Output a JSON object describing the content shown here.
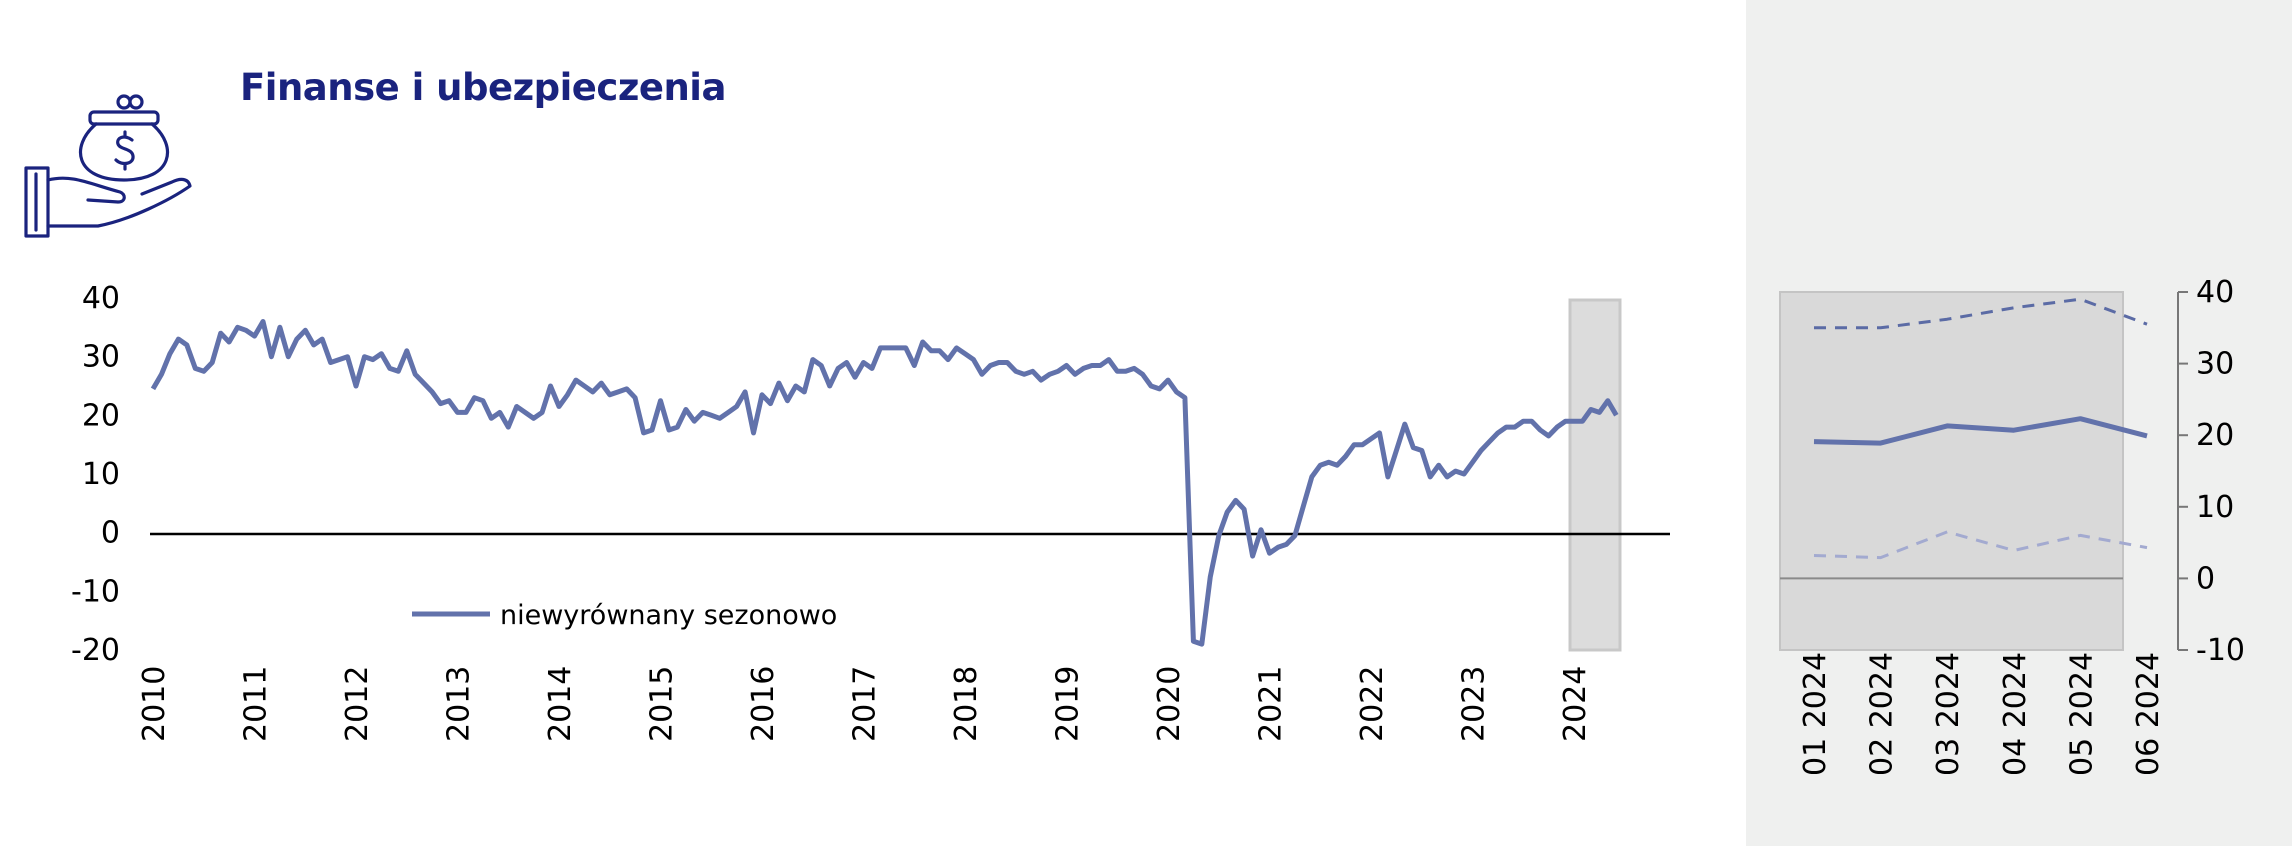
{
  "header": {
    "title": "Finanse i ubezpieczenia",
    "icon": "money-bag-on-hand-icon"
  },
  "colors": {
    "title": "#1a237e",
    "line": "#6272ab",
    "upper_dashed": "#5b6ba5",
    "lower_dashed": "#a3aad0",
    "highlight": "#d9d9d9",
    "panel_bg": "#eff0ef"
  },
  "chart_data": [
    {
      "type": "line",
      "ylim": [
        -20,
        40
      ],
      "yticks": [
        "40",
        "30",
        "20",
        "10",
        "0",
        "-10",
        "-20"
      ],
      "xticks": [
        "2010",
        "2011",
        "2012",
        "2013",
        "2014",
        "2015",
        "2016",
        "2017",
        "2018",
        "2019",
        "2020",
        "2021",
        "2022",
        "2023",
        "2024"
      ],
      "legend": {
        "label": "niewyrównany sezonowo",
        "position": "bottom-left"
      },
      "highlight_period": "2024",
      "series": [
        {
          "name": "niewyrównany sezonowo",
          "x_start": "2010-01",
          "frequency": "monthly",
          "values": [
            24.5,
            27,
            30.5,
            33,
            32,
            28,
            27.5,
            29,
            34,
            32.5,
            35,
            34.5,
            33.5,
            36,
            30,
            35,
            30,
            33,
            34.5,
            32,
            33,
            29,
            29.5,
            30,
            25,
            30,
            29.5,
            30.5,
            28,
            27.5,
            31,
            27,
            25.5,
            24,
            22,
            22.5,
            20.5,
            20.5,
            23,
            22.5,
            19.5,
            20.5,
            18,
            21.5,
            20.5,
            19.5,
            20.5,
            25,
            21.5,
            23.5,
            26,
            25,
            24,
            25.5,
            23.5,
            24,
            24.5,
            23,
            17,
            17.5,
            22.5,
            17.5,
            18,
            21,
            19,
            20.5,
            20,
            19.5,
            20.5,
            21.5,
            24,
            17,
            23.5,
            22,
            25.5,
            22.5,
            25,
            24,
            29.5,
            28.5,
            25,
            28,
            29,
            26.5,
            29,
            28,
            31.5,
            31.5,
            31.5,
            31.5,
            28.5,
            32.5,
            31,
            31,
            29.5,
            31.5,
            30.5,
            29.5,
            27,
            28.5,
            29,
            29,
            27.5,
            27,
            27.5,
            26,
            27,
            27.5,
            28.5,
            27,
            28,
            28.5,
            28.5,
            29.5,
            27.5,
            27.5,
            28,
            27,
            25,
            24.5,
            26,
            24,
            23,
            -18.5,
            -19,
            -7.5,
            -0.5,
            3.5,
            5.5,
            4,
            -4,
            0.5,
            -3.5,
            -2.5,
            -2,
            -0.5,
            4.5,
            9.5,
            11.5,
            12,
            11.5,
            13,
            15,
            15,
            16,
            17,
            9.5,
            14,
            18.5,
            14.5,
            14,
            9.5,
            11.5,
            9.5,
            10.5,
            10,
            12,
            14,
            15.5,
            17,
            18,
            18,
            19,
            19,
            17.5,
            16.5,
            18,
            19,
            19,
            19,
            21,
            20.5,
            22.5,
            20
          ]
        }
      ]
    },
    {
      "type": "line",
      "ylim": [
        -10,
        40
      ],
      "yticks": [
        "40",
        "30",
        "20",
        "10",
        "0",
        "-10"
      ],
      "categories": [
        "01 2024",
        "02 2024",
        "03 2024",
        "04 2024",
        "05 2024",
        "06 2024"
      ],
      "series": [
        {
          "style": "dashed-upper",
          "values": [
            35,
            35,
            36.2,
            37.8,
            39,
            35.5
          ]
        },
        {
          "style": "solid",
          "values": [
            19.1,
            18.9,
            21.3,
            20.7,
            22.3,
            19.9
          ]
        },
        {
          "style": "dashed-lower",
          "values": [
            3.2,
            2.9,
            6.5,
            3.9,
            6,
            4.3
          ]
        }
      ]
    }
  ]
}
